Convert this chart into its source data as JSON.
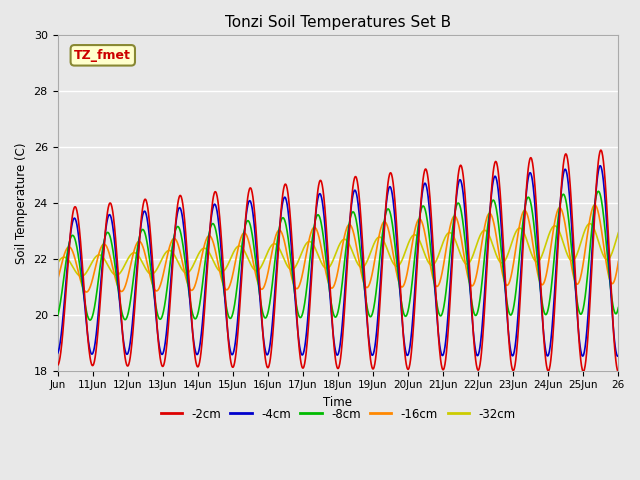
{
  "title": "Tonzi Soil Temperatures Set B",
  "xlabel": "Time",
  "ylabel": "Soil Temperature (C)",
  "ylim": [
    18,
    30
  ],
  "xlim": [
    0,
    16
  ],
  "xtick_labels": [
    "Jun",
    "11Jun",
    "12Jun",
    "13Jun",
    "14Jun",
    "15Jun",
    "16Jun",
    "17Jun",
    "18Jun",
    "19Jun",
    "20Jun",
    "21Jun",
    "22Jun",
    "23Jun",
    "24Jun",
    "25Jun",
    "26"
  ],
  "xtick_positions": [
    0,
    1,
    2,
    3,
    4,
    5,
    6,
    7,
    8,
    9,
    10,
    11,
    12,
    13,
    14,
    15,
    16
  ],
  "ytick_positions": [
    18,
    20,
    22,
    24,
    26,
    28,
    30
  ],
  "line_colors": {
    "-2cm": "#dd0000",
    "-4cm": "#0000cc",
    "-8cm": "#00bb00",
    "-16cm": "#ff8800",
    "-32cm": "#cccc00"
  },
  "line_lw": 1.2,
  "annotation_text": "TZ_fmet",
  "annotation_fontsize": 9,
  "annotation_color": "#cc0000",
  "annotation_bg": "#ffffcc",
  "annotation_border": "#888833",
  "bg_color": "#e8e8e8",
  "legend_labels": [
    "-2cm",
    "-4cm",
    "-8cm",
    "-16cm",
    "-32cm"
  ],
  "legend_colors": [
    "#dd0000",
    "#0000cc",
    "#00bb00",
    "#ff8800",
    "#cccc00"
  ]
}
